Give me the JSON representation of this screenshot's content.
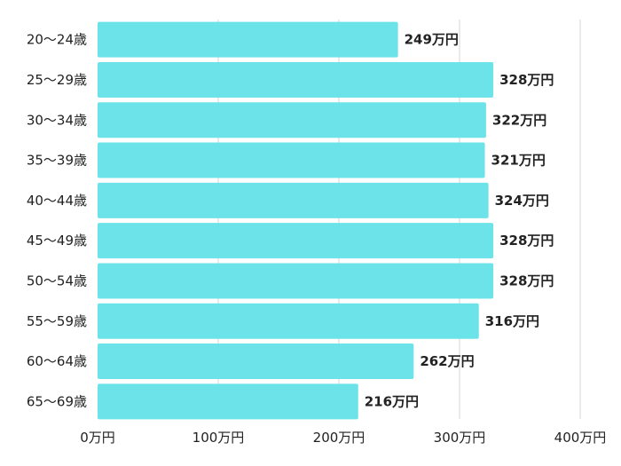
{
  "chart_data": {
    "type": "bar",
    "orientation": "horizontal",
    "categories": [
      "20〜24歳",
      "25〜29歳",
      "30〜34歳",
      "35〜39歳",
      "40〜44歳",
      "45〜49歳",
      "50〜54歳",
      "55〜59歳",
      "60〜64歳",
      "65〜69歳"
    ],
    "values": [
      249,
      328,
      322,
      321,
      324,
      328,
      328,
      316,
      262,
      216
    ],
    "value_labels": [
      "249万円",
      "328万円",
      "322万円",
      "321万円",
      "324万円",
      "328万円",
      "328万円",
      "316万円",
      "262万円",
      "216万円"
    ],
    "x_ticks": [
      0,
      100,
      200,
      300,
      400
    ],
    "x_tick_labels": [
      "0万円",
      "100万円",
      "200万円",
      "300万円",
      "400万円"
    ],
    "xlim": [
      0,
      400
    ],
    "grid": "vertical",
    "legend": "none",
    "title": "",
    "xlabel": "",
    "ylabel": ""
  },
  "colors": {
    "bar": "#6ce3e8",
    "grid": "#d6d6d6",
    "text": "#222222"
  }
}
